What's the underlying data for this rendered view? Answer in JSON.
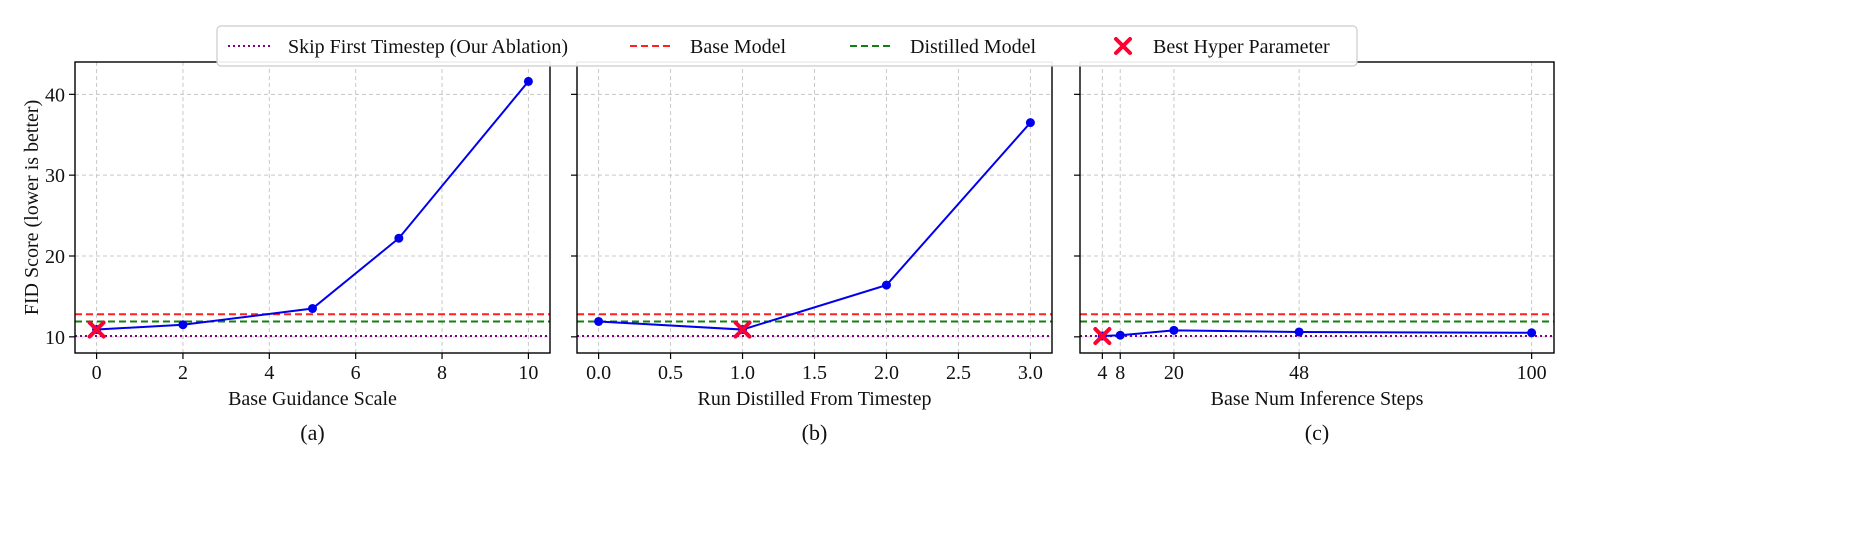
{
  "legend": [
    {
      "label": "Skip First Timestep (Our Ablation)",
      "style": "dotted",
      "color": "#800080"
    },
    {
      "label": "Base Model",
      "style": "dashed",
      "color": "#ff2020"
    },
    {
      "label": "Distilled Model",
      "style": "dashed",
      "color": "#108010"
    },
    {
      "label": "Best Hyper Parameter",
      "style": "marker-x",
      "color": "#ff0030"
    }
  ],
  "colors": {
    "series": "#0000ee",
    "grid": "#c8c8c8",
    "best": "#ff0030"
  },
  "chart_data": [
    {
      "type": "line",
      "caption": "(a)",
      "xlabel": "Base Guidance Scale",
      "ylabel": "FID Score (lower is better)",
      "xlim": [
        -0.5,
        10.5
      ],
      "ylim": [
        8,
        44
      ],
      "xticks": [
        0,
        2,
        4,
        6,
        8,
        10
      ],
      "xtick_labels": [
        "0",
        "2",
        "4",
        "6",
        "8",
        "10"
      ],
      "yticks": [
        10,
        20,
        30,
        40
      ],
      "ytick_labels": [
        "10",
        "20",
        "30",
        "40"
      ],
      "grid": true,
      "x": [
        0,
        2,
        5,
        7,
        10
      ],
      "y": [
        10.9,
        11.5,
        13.5,
        22.2,
        41.6
      ],
      "hlines": {
        "skip_first_timestep": 10.1,
        "base_model": 12.8,
        "distilled_model": 11.9
      },
      "best": {
        "x": 0,
        "y": 10.9
      }
    },
    {
      "type": "line",
      "caption": "(b)",
      "xlabel": "Run Distilled From Timestep",
      "ylabel": "",
      "xlim": [
        -0.15,
        3.15
      ],
      "ylim": [
        8,
        44
      ],
      "xticks": [
        0,
        0.5,
        1,
        1.5,
        2,
        2.5,
        3
      ],
      "xtick_labels": [
        "0.0",
        "0.5",
        "1.0",
        "1.5",
        "2.0",
        "2.5",
        "3.0"
      ],
      "yticks": [
        10,
        20,
        30,
        40
      ],
      "ytick_labels": [
        "",
        "",
        "",
        ""
      ],
      "grid": true,
      "x": [
        0,
        1,
        2,
        3
      ],
      "y": [
        11.9,
        10.9,
        16.4,
        36.5
      ],
      "hlines": {
        "skip_first_timestep": 10.1,
        "base_model": 12.8,
        "distilled_model": 11.9
      },
      "best": {
        "x": 1,
        "y": 10.9
      }
    },
    {
      "type": "line",
      "caption": "(c)",
      "xlabel": "Base Num Inference Steps",
      "ylabel": "",
      "xlim": [
        -1,
        105
      ],
      "ylim": [
        8,
        44
      ],
      "xticks": [
        4,
        8,
        20,
        48,
        100
      ],
      "xtick_labels": [
        "4",
        "8",
        "20",
        "48",
        "100"
      ],
      "yticks": [
        10,
        20,
        30,
        40
      ],
      "ytick_labels": [
        "",
        "",
        "",
        ""
      ],
      "grid": true,
      "x": [
        4,
        8,
        20,
        48,
        100
      ],
      "y": [
        10.1,
        10.2,
        10.8,
        10.6,
        10.5
      ],
      "hlines": {
        "skip_first_timestep": 10.1,
        "base_model": 12.8,
        "distilled_model": 11.9
      },
      "best": {
        "x": 4,
        "y": 10.1
      }
    }
  ]
}
